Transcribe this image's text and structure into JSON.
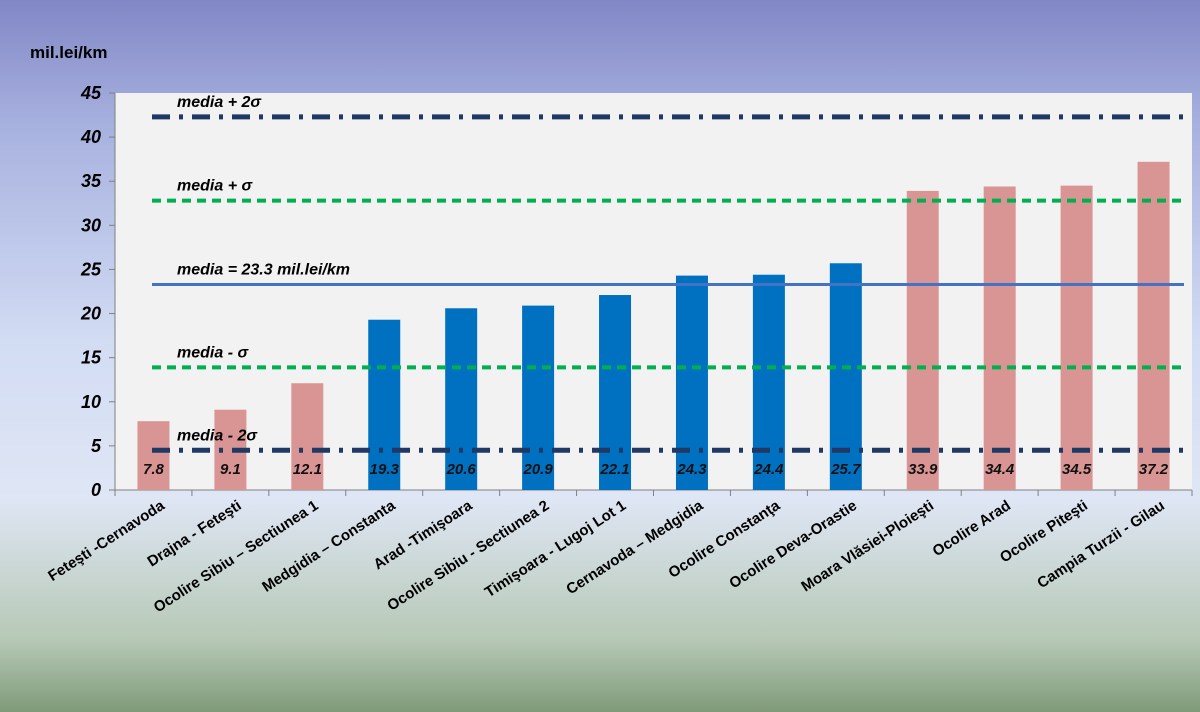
{
  "chart_data": {
    "type": "bar",
    "unit_label": "mil.lei/km",
    "categories": [
      "Feteşti -Cernavoda",
      "Drajna - Feteşti",
      "Ocolire Sibiu – Sectiunea 1",
      "Medgidia – Constanta",
      "Arad -Timişoara",
      "Ocolire Sibiu - Sectiunea 2",
      "Timişoara - Lugoj Lot 1",
      "Cernavoda – Medgidia",
      "Ocolire Constanţa",
      "Ocolire Deva-Orastie",
      "Moara Vlăsiei-Ploieşti",
      "Ocolire Arad",
      "Ocolire Piteşti",
      "Campia Turzii - Gilau"
    ],
    "values": [
      7.8,
      9.1,
      12.1,
      19.3,
      20.6,
      20.9,
      22.1,
      24.3,
      24.4,
      25.7,
      33.9,
      34.4,
      34.5,
      37.2
    ],
    "data_labels": [
      "7.8",
      "9.1",
      "12.1",
      "19.3",
      "20.6",
      "20.9",
      "22.1",
      "24.3",
      "24.4",
      "25.7",
      "33.9",
      "34.4",
      "34.5",
      "37.2"
    ],
    "bar_groups": [
      "low",
      "low",
      "low",
      "mid",
      "mid",
      "mid",
      "mid",
      "mid",
      "mid",
      "mid",
      "high",
      "high",
      "high",
      "high"
    ],
    "group_colors": {
      "low": "#d99594",
      "mid": "#0070c0",
      "high": "#d99594"
    },
    "yticks": [
      0,
      5,
      10,
      15,
      20,
      25,
      30,
      35,
      40,
      45
    ],
    "ylim": [
      0,
      45
    ],
    "grid": false,
    "reference_lines": [
      {
        "label": "media + 2σ",
        "value": 42.3,
        "style": "dash-dot",
        "color": "#1f3864"
      },
      {
        "label": "media + σ",
        "value": 32.8,
        "style": "dashed",
        "color": "#00b050"
      },
      {
        "label": "media = 23.3 mil.lei/km",
        "value": 23.3,
        "style": "solid",
        "color": "#4472c4"
      },
      {
        "label": "media - σ",
        "value": 13.9,
        "style": "dashed",
        "color": "#00b050"
      },
      {
        "label": "media - 2σ",
        "value": 4.5,
        "style": "dash-dot",
        "color": "#1f3864"
      }
    ],
    "plot_background": "#f2f2f2"
  }
}
